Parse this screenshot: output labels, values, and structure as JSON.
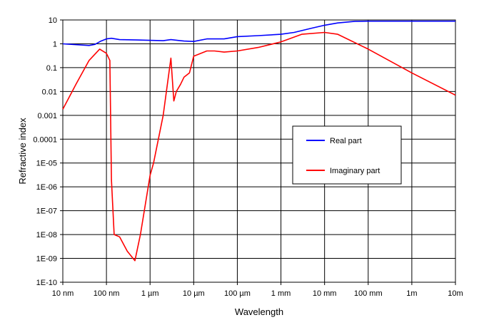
{
  "chart_data": {
    "type": "line",
    "title": "",
    "xlabel": "Wavelength",
    "ylabel": "Refractive index",
    "x_scale": "log",
    "y_scale": "log",
    "xlim": [
      "10 nm",
      "10m"
    ],
    "ylim": [
      "1E-10",
      "10"
    ],
    "x_tick_labels": [
      "10 nm",
      "100 nm",
      "1 µm",
      "10 µm",
      "100 µm",
      "1 mm",
      "10 mm",
      "100 mm",
      "1m",
      "10m"
    ],
    "y_tick_labels": [
      "1E-10",
      "1E-09",
      "1E-08",
      "1E-07",
      "1E-06",
      "1E-05",
      "0.0001",
      "0.001",
      "0.01",
      "0.1",
      "1",
      "10"
    ],
    "grid": true,
    "legend_position": "right",
    "series": [
      {
        "name": "Real part",
        "color": "#0000ff",
        "x": [
          "10 nm",
          "40 nm",
          "55 nm",
          "75 nm",
          "100 nm",
          "130 nm",
          "200 nm",
          "500 nm",
          "1 µm",
          "2 µm",
          "3 µm",
          "6 µm",
          "10 µm",
          "20 µm",
          "50 µm",
          "100 µm",
          "300 µm",
          "1 mm",
          "2 mm",
          "5 mm",
          "10 mm",
          "20 mm",
          "50 mm",
          "100 mm",
          "1m",
          "10m"
        ],
        "y": [
          1.0,
          0.85,
          0.95,
          1.3,
          1.6,
          1.7,
          1.5,
          1.45,
          1.4,
          1.35,
          1.5,
          1.3,
          1.25,
          1.6,
          1.6,
          2.0,
          2.2,
          2.5,
          3.0,
          4.5,
          6.0,
          7.5,
          8.8,
          8.9,
          8.9,
          8.9
        ]
      },
      {
        "name": "Imaginary part",
        "color": "#ff0000",
        "x": [
          "10 nm",
          "20 nm",
          "40 nm",
          "70 nm",
          "100 nm",
          "120 nm",
          "130 nm",
          "150 nm",
          "200 nm",
          "300 nm",
          "450 nm",
          "600 nm",
          "1 µm",
          "1.2 µm",
          "2 µm",
          "3 µm",
          "3.5 µm",
          "4 µm",
          "5 µm",
          "6 µm",
          "8 µm",
          "10 µm",
          "20 µm",
          "30 µm",
          "50 µm",
          "100 µm",
          "300 µm",
          "1 mm",
          "3 mm",
          "10 mm",
          "20 mm",
          "100 mm",
          "1m",
          "10m"
        ],
        "y": [
          0.0018,
          0.02,
          0.2,
          0.6,
          0.4,
          0.2,
          2e-06,
          1e-08,
          8e-09,
          2e-09,
          8e-10,
          1e-08,
          3e-06,
          1e-05,
          0.001,
          0.25,
          0.004,
          0.01,
          0.02,
          0.04,
          0.06,
          0.3,
          0.5,
          0.5,
          0.45,
          0.5,
          0.7,
          1.2,
          2.5,
          3.0,
          2.5,
          0.6,
          0.06,
          0.007
        ]
      }
    ]
  }
}
